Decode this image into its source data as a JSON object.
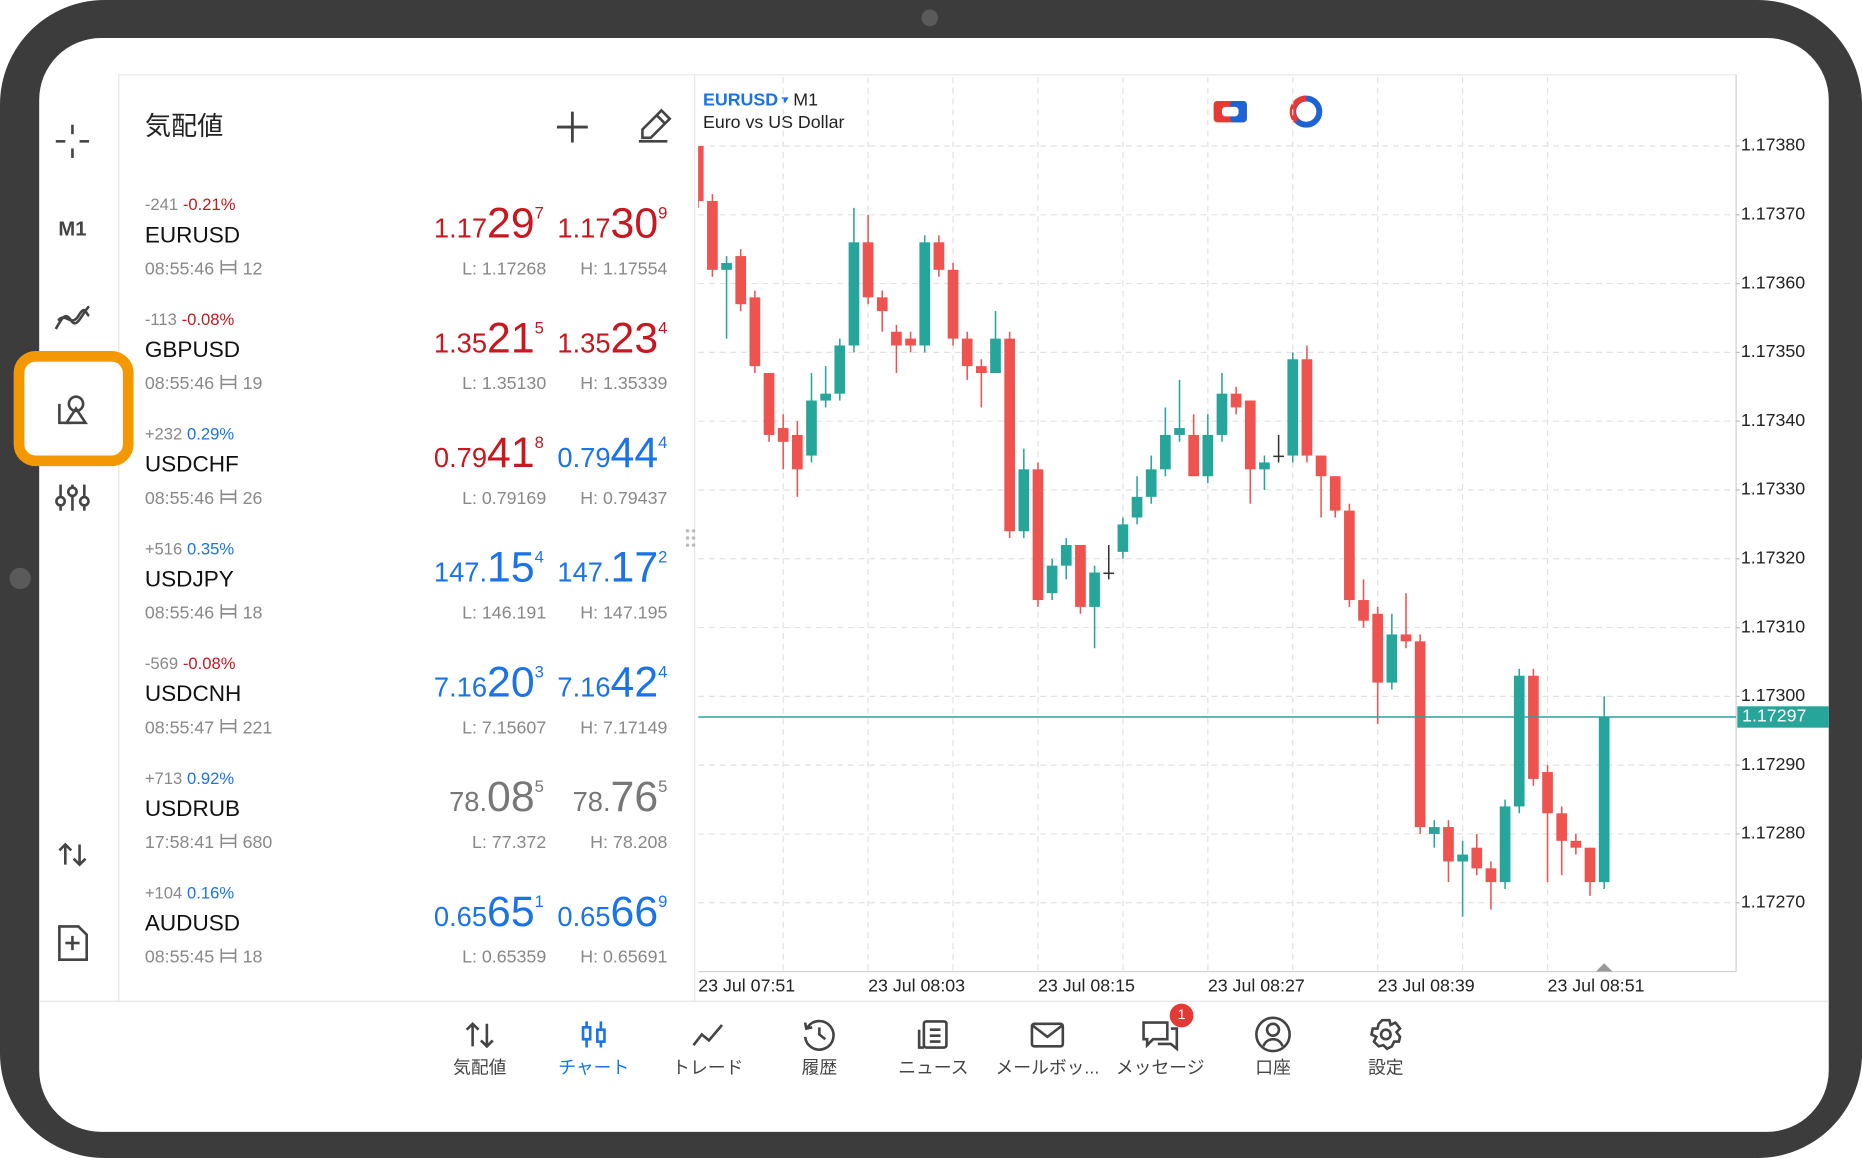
{
  "quotes": {
    "title": "気配値",
    "rows": [
      {
        "change_points": "-241",
        "change_pct": "-0.21%",
        "change_color": "#c8171e",
        "symbol": "EURUSD",
        "time": "08:55:46",
        "spread": "12",
        "bid": {
          "pre": "1.17",
          "big": "29",
          "sup": "7",
          "color": "#c8171e"
        },
        "ask": {
          "pre": "1.17",
          "big": "30",
          "sup": "9",
          "color": "#c8171e"
        },
        "low": "L: 1.17268",
        "high": "H: 1.17554"
      },
      {
        "change_points": "-113",
        "change_pct": "-0.08%",
        "change_color": "#c8171e",
        "symbol": "GBPUSD",
        "time": "08:55:46",
        "spread": "19",
        "bid": {
          "pre": "1.35",
          "big": "21",
          "sup": "5",
          "color": "#c8171e"
        },
        "ask": {
          "pre": "1.35",
          "big": "23",
          "sup": "4",
          "color": "#c8171e"
        },
        "low": "L: 1.35130",
        "high": "H: 1.35339"
      },
      {
        "change_points": "+232",
        "change_pct": "0.29%",
        "change_color": "#1a73e8",
        "symbol": "USDCHF",
        "time": "08:55:46",
        "spread": "26",
        "bid": {
          "pre": "0.79",
          "big": "41",
          "sup": "8",
          "color": "#c8171e"
        },
        "ask": {
          "pre": "0.79",
          "big": "44",
          "sup": "4",
          "color": "#1a73e8"
        },
        "low": "L: 0.79169",
        "high": "H: 0.79437"
      },
      {
        "change_points": "+516",
        "change_pct": "0.35%",
        "change_color": "#1a73e8",
        "symbol": "USDJPY",
        "time": "08:55:46",
        "spread": "18",
        "bid": {
          "pre": "147.",
          "big": "15",
          "sup": "4",
          "color": "#1a73e8"
        },
        "ask": {
          "pre": "147.",
          "big": "17",
          "sup": "2",
          "color": "#1a73e8"
        },
        "low": "L: 146.191",
        "high": "H: 147.195"
      },
      {
        "change_points": "-569",
        "change_pct": "-0.08%",
        "change_color": "#c8171e",
        "symbol": "USDCNH",
        "time": "08:55:47",
        "spread": "221",
        "bid": {
          "pre": "7.16",
          "big": "20",
          "sup": "3",
          "color": "#1a73e8"
        },
        "ask": {
          "pre": "7.16",
          "big": "42",
          "sup": "4",
          "color": "#1a73e8"
        },
        "low": "L: 7.15607",
        "high": "H: 7.17149"
      },
      {
        "change_points": "+713",
        "change_pct": "0.92%",
        "change_color": "#1a73e8",
        "symbol": "USDRUB",
        "time": "17:58:41",
        "spread": "680",
        "bid": {
          "pre": "78.",
          "big": "08",
          "sup": "5",
          "color": "#777777"
        },
        "ask": {
          "pre": "78.",
          "big": "76",
          "sup": "5",
          "color": "#777777"
        },
        "low": "L: 77.372",
        "high": "H: 78.208"
      },
      {
        "change_points": "+104",
        "change_pct": "0.16%",
        "change_color": "#1a73e8",
        "symbol": "AUDUSD",
        "time": "08:55:45",
        "spread": "18",
        "bid": {
          "pre": "0.65",
          "big": "65",
          "sup": "1",
          "color": "#1a73e8"
        },
        "ask": {
          "pre": "0.65",
          "big": "66",
          "sup": "9",
          "color": "#1a73e8"
        },
        "low": "L: 0.65359",
        "high": "H: 0.65691"
      }
    ]
  },
  "chart_data": {
    "type": "candlestick",
    "title": "EURUSD",
    "timeframe": "M1",
    "subtitle": "Euro vs US Dollar",
    "up_color": "#26a69a",
    "down_color": "#ef5350",
    "grid": true,
    "categories": [
      "23 Jul 07:51",
      null,
      null,
      null,
      null,
      null,
      null,
      null,
      null,
      null,
      null,
      null,
      "23 Jul 08:03",
      null,
      null,
      null,
      null,
      null,
      null,
      null,
      null,
      null,
      null,
      null,
      "23 Jul 08:15",
      null,
      null,
      null,
      null,
      null,
      null,
      null,
      null,
      null,
      null,
      null,
      "23 Jul 08:27",
      null,
      null,
      null,
      null,
      null,
      null,
      null,
      null,
      null,
      null,
      null,
      "23 Jul 08:39",
      null,
      null,
      null,
      null,
      null,
      null,
      null,
      null,
      null,
      null,
      null,
      "23 Jul 08:51",
      null,
      null,
      null,
      null
    ],
    "open": [
      1.1738,
      1.17372,
      1.17362,
      1.17364,
      1.17358,
      1.17347,
      1.17339,
      1.17338,
      1.17335,
      1.17343,
      1.17344,
      1.17351,
      1.17366,
      1.17358,
      1.17353,
      1.17352,
      1.17351,
      1.17366,
      1.17362,
      1.17352,
      1.17348,
      1.17347,
      1.17352,
      1.17324,
      1.17333,
      1.17315,
      1.17319,
      1.17322,
      1.17313,
      1.17318,
      1.17321,
      1.17326,
      1.17329,
      1.17333,
      1.17338,
      1.17338,
      1.17332,
      1.17338,
      1.17344,
      1.17343,
      1.17333,
      1.17335,
      1.17335,
      1.17349,
      1.17335,
      1.17332,
      1.17327,
      1.17314,
      1.17312,
      1.17302,
      1.17309,
      1.17308,
      1.1728,
      1.17281,
      1.17276,
      1.17278,
      1.17275,
      1.17273,
      1.17284,
      1.17303,
      1.17289,
      1.17283,
      1.17279,
      1.17278,
      1.17273
    ],
    "high": [
      1.1738,
      1.17373,
      1.17364,
      1.17365,
      1.17359,
      1.17347,
      1.17341,
      1.1734,
      1.17347,
      1.17348,
      1.17352,
      1.17371,
      1.1737,
      1.17359,
      1.17354,
      1.17353,
      1.17367,
      1.17367,
      1.17363,
      1.17353,
      1.17349,
      1.17356,
      1.17353,
      1.17336,
      1.17334,
      1.1732,
      1.17323,
      1.17322,
      1.17319,
      1.17322,
      1.17326,
      1.17332,
      1.17335,
      1.17342,
      1.17346,
      1.17341,
      1.17341,
      1.17347,
      1.17345,
      1.17343,
      1.17335,
      1.17338,
      1.1735,
      1.17351,
      1.17335,
      1.17332,
      1.17328,
      1.17317,
      1.17313,
      1.17312,
      1.17315,
      1.17309,
      1.17282,
      1.17282,
      1.17279,
      1.1728,
      1.17276,
      1.17285,
      1.17304,
      1.17304,
      1.1729,
      1.17284,
      1.1728,
      1.17278,
      1.173
    ],
    "low": [
      1.17371,
      1.17361,
      1.17352,
      1.17356,
      1.17347,
      1.17337,
      1.17333,
      1.17329,
      1.17334,
      1.17342,
      1.17343,
      1.1735,
      1.17357,
      1.17353,
      1.17347,
      1.1735,
      1.1735,
      1.17361,
      1.17351,
      1.17346,
      1.17342,
      1.17347,
      1.17323,
      1.17323,
      1.17313,
      1.17314,
      1.17317,
      1.17312,
      1.17307,
      1.17317,
      1.1732,
      1.17325,
      1.17328,
      1.17332,
      1.17337,
      1.17332,
      1.17331,
      1.17337,
      1.17341,
      1.17328,
      1.1733,
      1.17334,
      1.17334,
      1.17334,
      1.17326,
      1.17326,
      1.17313,
      1.1731,
      1.17296,
      1.17301,
      1.17307,
      1.1728,
      1.17278,
      1.17273,
      1.17268,
      1.17274,
      1.17269,
      1.17272,
      1.17283,
      1.17287,
      1.17273,
      1.17274,
      1.17277,
      1.17271,
      1.17272
    ],
    "close": [
      1.17372,
      1.17362,
      1.17363,
      1.17357,
      1.17348,
      1.17338,
      1.17337,
      1.17333,
      1.17343,
      1.17344,
      1.17351,
      1.17366,
      1.17358,
      1.17356,
      1.17351,
      1.17351,
      1.17366,
      1.17362,
      1.17352,
      1.17348,
      1.17347,
      1.17352,
      1.17324,
      1.17333,
      1.17314,
      1.17319,
      1.17322,
      1.17313,
      1.17318,
      1.17318,
      1.17325,
      1.17329,
      1.17333,
      1.17338,
      1.17339,
      1.17332,
      1.17338,
      1.17344,
      1.17342,
      1.17333,
      1.17334,
      1.17335,
      1.17349,
      1.17335,
      1.17332,
      1.17327,
      1.17314,
      1.17311,
      1.17302,
      1.17309,
      1.17308,
      1.17281,
      1.17281,
      1.17276,
      1.17277,
      1.17275,
      1.17273,
      1.17284,
      1.17303,
      1.17288,
      1.17283,
      1.17279,
      1.17278,
      1.17273,
      1.17297
    ],
    "ylim": [
      1.1726,
      1.1739
    ],
    "yticks": [
      {
        "value": 1.1738,
        "label": "1.17380"
      },
      {
        "value": 1.1737,
        "label": "1.17370"
      },
      {
        "value": 1.1736,
        "label": "1.17360"
      },
      {
        "value": 1.1735,
        "label": "1.17350"
      },
      {
        "value": 1.1734,
        "label": "1.17340"
      },
      {
        "value": 1.1733,
        "label": "1.17330"
      },
      {
        "value": 1.1732,
        "label": "1.17320"
      },
      {
        "value": 1.1731,
        "label": "1.17310"
      },
      {
        "value": 1.173,
        "label": "1.17300"
      },
      {
        "value": 1.1729,
        "label": "1.17290"
      },
      {
        "value": 1.1728,
        "label": "1.17280"
      },
      {
        "value": 1.1727,
        "label": "1.17270"
      }
    ],
    "last_price": 1.17297,
    "last_price_color": "#26a69a"
  },
  "nav": {
    "items": [
      {
        "label": "気配値"
      },
      {
        "label": "チャート",
        "active": true
      },
      {
        "label": "トレード"
      },
      {
        "label": "履歴"
      },
      {
        "label": "ニュース"
      },
      {
        "label": "メールボッ..."
      },
      {
        "label": "メッセージ",
        "badge": "1"
      },
      {
        "label": "口座"
      },
      {
        "label": "設定"
      }
    ],
    "active_color": "#1a73e8"
  }
}
